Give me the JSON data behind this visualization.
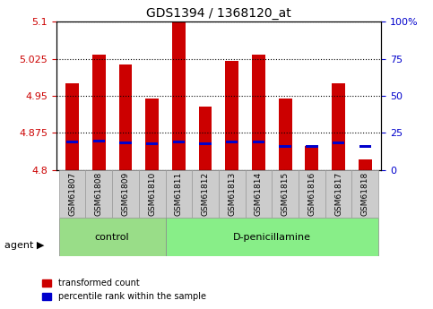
{
  "title": "GDS1394 / 1368120_at",
  "samples": [
    "GSM61807",
    "GSM61808",
    "GSM61809",
    "GSM61810",
    "GSM61811",
    "GSM61812",
    "GSM61813",
    "GSM61814",
    "GSM61815",
    "GSM61816",
    "GSM61817",
    "GSM61818"
  ],
  "red_values": [
    4.975,
    5.033,
    5.013,
    4.945,
    5.1,
    4.929,
    5.02,
    5.034,
    4.945,
    4.848,
    4.975,
    4.821
  ],
  "blue_values": [
    4.856,
    4.858,
    4.855,
    4.853,
    4.857,
    4.853,
    4.856,
    4.857,
    4.847,
    4.847,
    4.855,
    4.847
  ],
  "ymin": 4.8,
  "ymax": 5.1,
  "yticks": [
    4.8,
    4.875,
    4.95,
    5.025,
    5.1
  ],
  "ytick_labels": [
    "4.8",
    "4.875",
    "4.95",
    "5.025",
    "5.1"
  ],
  "right_yticks": [
    0,
    25,
    50,
    75,
    100
  ],
  "right_ytick_labels": [
    "0",
    "25",
    "50",
    "75",
    "100%"
  ],
  "control_samples": [
    "GSM61807",
    "GSM61808",
    "GSM61809",
    "GSM61810"
  ],
  "treatment_samples": [
    "GSM61811",
    "GSM61812",
    "GSM61813",
    "GSM61814",
    "GSM61815",
    "GSM61816",
    "GSM61817",
    "GSM61818"
  ],
  "control_label": "control",
  "treatment_label": "D-penicillamine",
  "agent_label": "agent",
  "legend_red": "transformed count",
  "legend_blue": "percentile rank within the sample",
  "bar_color": "#CC0000",
  "blue_color": "#0000CC",
  "bar_width": 0.5,
  "bar_base": 4.8,
  "control_bg": "#99DD88",
  "treatment_bg": "#88EE88",
  "group_bg": "#AADDAA",
  "tick_bg": "#DDDDDD",
  "axis_label_color_left": "#CC0000",
  "axis_label_color_right": "#0000CC"
}
